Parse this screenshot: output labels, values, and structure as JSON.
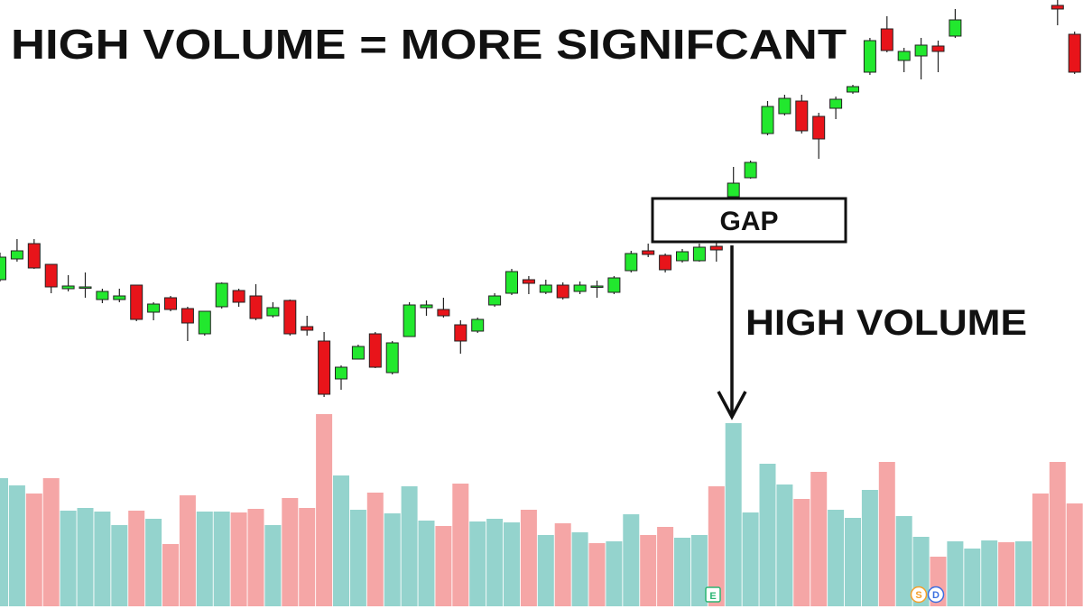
{
  "chart_data": [
    {
      "type": "candlestick",
      "title": "HIGH VOLUME = MORE SIGNIFCANT",
      "annotations": [
        "GAP",
        "HIGH VOLUME"
      ],
      "up_color": "#22e82e",
      "down_color": "#e8141a",
      "ylim": [
        0,
        100
      ],
      "open": [
        38,
        42.6,
        46,
        41.4,
        36,
        36.4,
        33.6,
        33.6,
        36.8,
        30.8,
        34,
        31.6,
        26,
        32,
        35.6,
        34.4,
        30,
        33.4,
        27.6,
        24.4,
        16,
        20.4,
        26,
        17.4,
        25.4,
        31.8,
        31.4,
        28,
        26.6,
        32.4,
        35,
        38,
        35.2,
        36.8,
        35.4,
        36.6,
        35.2,
        40,
        44.4,
        43.4,
        42.2,
        42.2,
        45.4,
        56.4,
        60.6,
        70.4,
        74.8,
        77.6,
        74.2,
        76,
        79.6,
        84,
        93.6,
        86.6,
        87.6,
        89.8,
        92,
        null,
        null,
        null,
        null,
        null,
        98.8,
        92.4
      ],
      "high": [
        44,
        47,
        47,
        41.4,
        39,
        39.6,
        36,
        36,
        36.8,
        33,
        34.4,
        32,
        31,
        37.4,
        36,
        37,
        33,
        33.6,
        30,
        26.4,
        19,
        23.6,
        26.4,
        24.4,
        33,
        33.4,
        34,
        29,
        29.6,
        35,
        40.4,
        38.8,
        38,
        37.4,
        37.6,
        37.8,
        38.8,
        44.4,
        46,
        43.8,
        44.8,
        46,
        46.4,
        63,
        64.4,
        77.6,
        79,
        79,
        75,
        78.6,
        81.2,
        91.6,
        96.4,
        89.4,
        91.6,
        91,
        98,
        null,
        null,
        null,
        null,
        null,
        100,
        93
      ],
      "low": [
        37.6,
        42,
        40.4,
        35,
        35.4,
        34,
        32.8,
        33,
        28.8,
        29,
        31,
        24.4,
        25.6,
        31.6,
        32,
        29,
        29.6,
        25.6,
        25.6,
        12,
        13.6,
        20.4,
        18.4,
        17,
        25.4,
        30,
        29.6,
        21.6,
        26.2,
        32,
        34.6,
        34.8,
        34.8,
        33.6,
        34.8,
        34,
        34.8,
        39.6,
        43,
        39.6,
        41.8,
        42,
        42,
        56,
        60.4,
        70,
        74.4,
        70.4,
        64.8,
        73.6,
        79.2,
        83.4,
        88.4,
        84,
        82.4,
        84,
        91.6,
        null,
        null,
        null,
        null,
        null,
        94.4,
        83.6
      ],
      "close": [
        43,
        44.4,
        40.6,
        36.4,
        36.6,
        36.4,
        35.4,
        34.4,
        29.2,
        32.6,
        31.4,
        28.4,
        31,
        37.2,
        33,
        29.4,
        31.8,
        26,
        26.8,
        12.6,
        18.6,
        23.2,
        18.6,
        24,
        32.4,
        32.4,
        30,
        24.4,
        29.2,
        34.4,
        39.8,
        37.2,
        36.8,
        34,
        36.8,
        36.6,
        38.4,
        43.8,
        43.6,
        40.2,
        44.2,
        45.2,
        44.6,
        59.4,
        64,
        76.4,
        78.2,
        71,
        69.2,
        78,
        80.8,
        91,
        88.8,
        88.6,
        90,
        88.6,
        95.6,
        null,
        null,
        null,
        null,
        null,
        98,
        84
      ],
      "events": [
        "E",
        "S",
        "D"
      ]
    },
    {
      "type": "bar",
      "ylim": [
        0,
        220
      ],
      "values": [
        142,
        134,
        125,
        142,
        106,
        109,
        105,
        90,
        106,
        97,
        69,
        123,
        105,
        105,
        104,
        108,
        90,
        120,
        109,
        213,
        145,
        107,
        126,
        103,
        133,
        95,
        89,
        136,
        94,
        97,
        93,
        107,
        79,
        92,
        82,
        70,
        72,
        102,
        79,
        88,
        76,
        79,
        133,
        203,
        104,
        158,
        135,
        119,
        149,
        107,
        98,
        129,
        160,
        100,
        77,
        55,
        72,
        64,
        73,
        71,
        72,
        125,
        160,
        114
      ],
      "colors": [
        "#94d3cd",
        "#94d3cd",
        "#f5a6a6",
        "#f5a6a6",
        "#94d3cd",
        "#94d3cd",
        "#94d3cd",
        "#94d3cd",
        "#f5a6a6",
        "#94d3cd",
        "#f5a6a6",
        "#f5a6a6",
        "#94d3cd",
        "#94d3cd",
        "#f5a6a6",
        "#f5a6a6",
        "#94d3cd",
        "#f5a6a6",
        "#f5a6a6",
        "#f5a6a6",
        "#94d3cd",
        "#94d3cd",
        "#f5a6a6",
        "#94d3cd",
        "#94d3cd",
        "#94d3cd",
        "#f5a6a6",
        "#f5a6a6",
        "#94d3cd",
        "#94d3cd",
        "#94d3cd",
        "#f5a6a6",
        "#94d3cd",
        "#f5a6a6",
        "#94d3cd",
        "#f5a6a6",
        "#94d3cd",
        "#94d3cd",
        "#f5a6a6",
        "#f5a6a6",
        "#94d3cd",
        "#94d3cd",
        "#f5a6a6",
        "#94d3cd",
        "#94d3cd",
        "#94d3cd",
        "#94d3cd",
        "#f5a6a6",
        "#f5a6a6",
        "#94d3cd",
        "#94d3cd",
        "#94d3cd",
        "#f5a6a6",
        "#94d3cd",
        "#94d3cd",
        "#f5a6a6",
        "#94d3cd",
        "#94d3cd",
        "#94d3cd",
        "#f5a6a6",
        "#94d3cd",
        "#f5a6a6",
        "#f5a6a6",
        "#f5a6a6"
      ]
    }
  ]
}
